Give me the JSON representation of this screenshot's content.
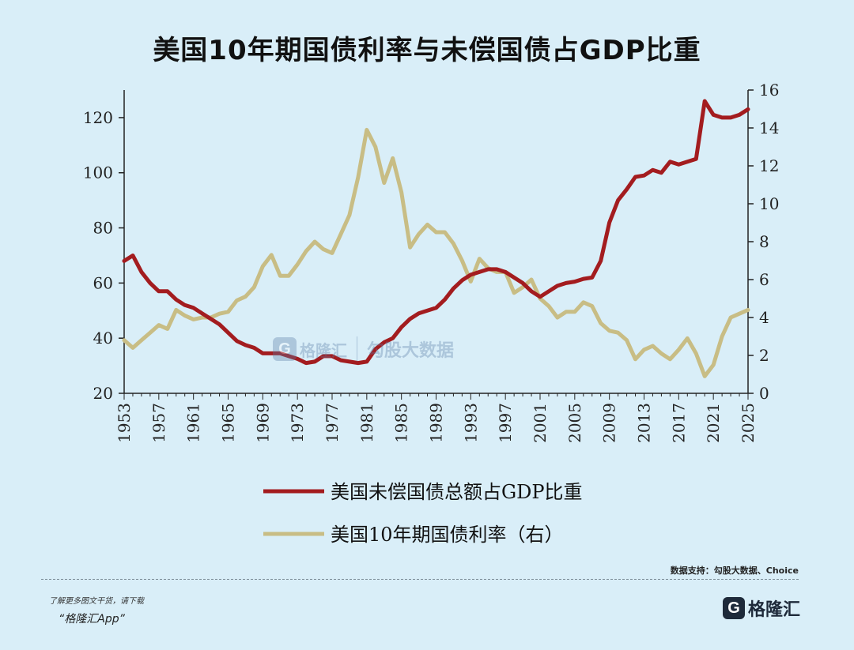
{
  "header": {
    "title": "美国10年期国债利率与未偿国债占GDP比重"
  },
  "chart_data": {
    "type": "line",
    "x_ticks": [
      "1953",
      "1957",
      "1961",
      "1965",
      "1969",
      "1973",
      "1977",
      "1981",
      "1985",
      "1989",
      "1993",
      "1997",
      "2001",
      "2005",
      "2009",
      "2013",
      "2017",
      "2021",
      "2025"
    ],
    "xlim": [
      1953,
      2025
    ],
    "y_left": {
      "lim": [
        20,
        130
      ],
      "ticks": [
        20,
        40,
        60,
        80,
        100,
        120
      ]
    },
    "y_right": {
      "lim": [
        0,
        16
      ],
      "ticks": [
        0,
        2,
        4,
        6,
        8,
        10,
        12,
        14,
        16
      ]
    },
    "series": [
      {
        "name": "美国未偿国债总额占GDP比重",
        "axis": "left",
        "color": "#a31c1f",
        "x": [
          1953,
          1954,
          1955,
          1956,
          1957,
          1958,
          1959,
          1960,
          1961,
          1962,
          1963,
          1964,
          1965,
          1966,
          1967,
          1968,
          1969,
          1970,
          1971,
          1972,
          1973,
          1974,
          1975,
          1976,
          1977,
          1978,
          1979,
          1980,
          1981,
          1982,
          1983,
          1984,
          1985,
          1986,
          1987,
          1988,
          1989,
          1990,
          1991,
          1992,
          1993,
          1994,
          1995,
          1996,
          1997,
          1998,
          1999,
          2000,
          2001,
          2002,
          2003,
          2004,
          2005,
          2006,
          2007,
          2008,
          2009,
          2010,
          2011,
          2012,
          2013,
          2014,
          2015,
          2016,
          2017,
          2018,
          2019,
          2020,
          2021,
          2022,
          2023,
          2024,
          2025
        ],
        "values": [
          68,
          70,
          64,
          60,
          57,
          57,
          54,
          52,
          51,
          49,
          47,
          45,
          42,
          39,
          37.5,
          36.5,
          34.5,
          34.5,
          34.5,
          33.5,
          32.5,
          31,
          31.5,
          33.5,
          33.5,
          32,
          31.5,
          31,
          31.5,
          36,
          38.5,
          40,
          44,
          47,
          49,
          50,
          51,
          54,
          58,
          61,
          63,
          64,
          65,
          65,
          64,
          62,
          60,
          57,
          55,
          57,
          59,
          60,
          60.5,
          61.5,
          62,
          68,
          82,
          90,
          94,
          98.5,
          99,
          101,
          100,
          104,
          103,
          104,
          105,
          126,
          121,
          120,
          120,
          121,
          123
        ]
      },
      {
        "name": "美国10年期国债利率（右）",
        "axis": "right",
        "color": "#c8bd85",
        "x": [
          1953,
          1954,
          1955,
          1956,
          1957,
          1958,
          1959,
          1960,
          1961,
          1962,
          1963,
          1964,
          1965,
          1966,
          1967,
          1968,
          1969,
          1970,
          1971,
          1972,
          1973,
          1974,
          1975,
          1976,
          1977,
          1978,
          1979,
          1980,
          1981,
          1982,
          1983,
          1984,
          1985,
          1986,
          1987,
          1988,
          1989,
          1990,
          1991,
          1992,
          1993,
          1994,
          1995,
          1996,
          1997,
          1998,
          1999,
          2000,
          2001,
          2002,
          2003,
          2004,
          2005,
          2006,
          2007,
          2008,
          2009,
          2010,
          2011,
          2012,
          2013,
          2014,
          2015,
          2016,
          2017,
          2018,
          2019,
          2020,
          2021,
          2022,
          2023,
          2024,
          2025
        ],
        "values": [
          2.8,
          2.4,
          2.8,
          3.2,
          3.6,
          3.4,
          4.4,
          4.1,
          3.9,
          4.0,
          4.0,
          4.2,
          4.3,
          4.9,
          5.1,
          5.6,
          6.7,
          7.3,
          6.2,
          6.2,
          6.8,
          7.5,
          8.0,
          7.6,
          7.4,
          8.4,
          9.4,
          11.4,
          13.9,
          13.0,
          11.1,
          12.4,
          10.6,
          7.7,
          8.4,
          8.9,
          8.5,
          8.5,
          7.9,
          7.0,
          5.9,
          7.1,
          6.6,
          6.4,
          6.4,
          5.3,
          5.6,
          6.0,
          5.0,
          4.6,
          4.0,
          4.3,
          4.3,
          4.8,
          4.6,
          3.7,
          3.3,
          3.2,
          2.8,
          1.8,
          2.3,
          2.5,
          2.1,
          1.8,
          2.3,
          2.9,
          2.1,
          0.9,
          1.5,
          3.0,
          4.0,
          4.2,
          4.4
        ]
      }
    ]
  },
  "footer": {
    "source": "数据支持：勾股大数据、Choice",
    "promo_line1": "了解更多图文干货，请下载",
    "promo_line2": "“格隆汇App”",
    "brand": "格隆汇",
    "brand_icon_letter": "G"
  },
  "watermark": {
    "brand": "格隆汇",
    "icon_letter": "G",
    "partner": "勾股大数据"
  }
}
